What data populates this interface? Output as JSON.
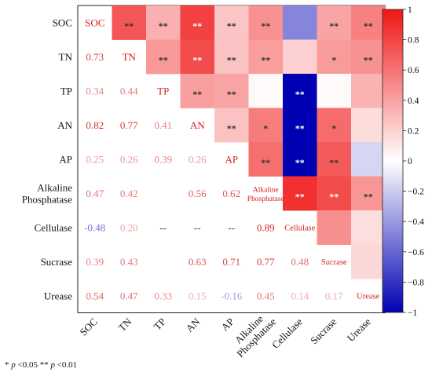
{
  "chart_data": {
    "type": "heatmap",
    "variables": [
      "SOC",
      "TN",
      "TP",
      "AN",
      "AP",
      "Alkaline\nPhosphatase",
      "Cellulase",
      "Sucrase",
      "Urease"
    ],
    "row_labels": [
      "SOC",
      "TN",
      "TP",
      "AN",
      "AP",
      "Alkaline\nPhosphatase",
      "Cellulase",
      "Sucrase",
      "Urease"
    ],
    "col_labels": [
      "SOC",
      "TN",
      "TP",
      "AN",
      "AP",
      "Alkaline\nPhosphatase",
      "Cellulase",
      "Sucrase",
      "Urease"
    ],
    "diagonal_labels": [
      "SOC",
      "TN",
      "TP",
      "AN",
      "AP",
      "Alkaline\nPhosphatase",
      "Cellulase",
      "Sucrase",
      "Urease"
    ],
    "lower_text": [
      [],
      [
        "0.73"
      ],
      [
        "0.34",
        "0.44"
      ],
      [
        "0.82",
        "0.77",
        "0.41"
      ],
      [
        "0.25",
        "0.26",
        "0.39",
        "0.26"
      ],
      [
        "0.47",
        "0.42",
        "",
        "0.56",
        "0.62"
      ],
      [
        "-0.48",
        "0.20",
        "--",
        "--",
        "--",
        "0.89"
      ],
      [
        "0.39",
        "0.43",
        "",
        "0.63",
        "0.71",
        "0.77",
        "0.48"
      ],
      [
        "0.54",
        "0.47",
        "0.33",
        "0.15",
        "-0.16",
        "0.45",
        "0.14",
        "0.17"
      ]
    ],
    "upper_values": [
      [
        null,
        0.73,
        0.34,
        0.82,
        0.25,
        0.47,
        -0.48,
        0.39,
        0.54
      ],
      [
        null,
        null,
        0.44,
        0.77,
        0.26,
        0.42,
        0.2,
        0.43,
        0.47
      ],
      [
        null,
        null,
        null,
        0.41,
        0.39,
        0.02,
        -1.0,
        0.02,
        0.33
      ],
      [
        null,
        null,
        null,
        null,
        0.26,
        0.56,
        -1.0,
        0.63,
        0.15
      ],
      [
        null,
        null,
        null,
        null,
        null,
        0.62,
        -1.0,
        0.71,
        -0.16
      ],
      [
        null,
        null,
        null,
        null,
        null,
        null,
        0.89,
        0.77,
        0.45
      ],
      [
        null,
        null,
        null,
        null,
        null,
        null,
        null,
        0.48,
        0.14
      ],
      [
        null,
        null,
        null,
        null,
        null,
        null,
        null,
        null,
        0.17
      ],
      [
        null,
        null,
        null,
        null,
        null,
        null,
        null,
        null,
        null
      ]
    ],
    "upper_sig": [
      [
        "",
        "**",
        "**",
        "**",
        "**",
        "**",
        "",
        "**",
        "**"
      ],
      [
        "",
        "",
        "**",
        "**",
        "**",
        "**",
        "",
        "*",
        "**"
      ],
      [
        "",
        "",
        "",
        "**",
        "**",
        "",
        "**",
        "",
        ""
      ],
      [
        "",
        "",
        "",
        "",
        "**",
        "*",
        "**",
        "*",
        ""
      ],
      [
        "",
        "",
        "",
        "",
        "",
        "**",
        "**",
        "**",
        ""
      ],
      [
        "",
        "",
        "",
        "",
        "",
        "",
        "**",
        "**",
        "**"
      ],
      [
        "",
        "",
        "",
        "",
        "",
        "",
        "",
        "",
        ""
      ],
      [
        "",
        "",
        "",
        "",
        "",
        "",
        "",
        "",
        ""
      ],
      [
        "",
        "",
        "",
        "",
        "",
        "",
        "",
        "",
        ""
      ]
    ],
    "colorbar": {
      "min": -1,
      "max": 1,
      "ticks": [
        "1",
        "0.8",
        "0.6",
        "0.4",
        "0.2",
        "0",
        "−0.2",
        "−0.4",
        "−0.6",
        "−0.8",
        "−1"
      ]
    },
    "colors": {
      "negative": "#0000b3",
      "zero": "#ffffff",
      "positive": "#f01616"
    }
  },
  "footnote": {
    "star1": "*",
    "p1": "p",
    "rest1": " <0.05  ",
    "star2": "**",
    "p2": "p",
    "rest2": " <0.01"
  }
}
